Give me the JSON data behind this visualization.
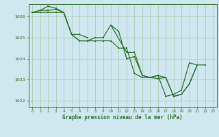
{
  "title": "Graphe pression niveau de la mer (hPa)",
  "bg_color": "#cfe8f0",
  "line_color": "#2d6e2d",
  "grid_color": "#a8c8a8",
  "text_color": "#2d6e2d",
  "ylim": [
    1021.7,
    1026.6
  ],
  "xlim": [
    -0.5,
    23.5
  ],
  "yticks": [
    1022,
    1023,
    1024,
    1025,
    1026
  ],
  "xticks": [
    0,
    1,
    2,
    3,
    4,
    5,
    6,
    7,
    8,
    9,
    10,
    11,
    12,
    13,
    14,
    15,
    16,
    17,
    18,
    19,
    20,
    21,
    22,
    23
  ],
  "s1_x": [
    0,
    1,
    2,
    3,
    4,
    5,
    6,
    7,
    8,
    9,
    10,
    11,
    12,
    13,
    14,
    15,
    16,
    17,
    18,
    19,
    20,
    21
  ],
  "s1_y": [
    1026.2,
    1026.2,
    1026.2,
    1026.2,
    1026.2,
    1025.15,
    1024.85,
    1024.85,
    1025.0,
    1025.0,
    1025.6,
    1025.3,
    1024.0,
    1024.1,
    1023.2,
    1023.1,
    1023.2,
    1022.2,
    1022.3,
    1022.5,
    1023.8,
    1023.7
  ],
  "s2_x": [
    0,
    1,
    2,
    3,
    4,
    5,
    6,
    7,
    8,
    9,
    10,
    11,
    12,
    13,
    14,
    15,
    16,
    17,
    18,
    19,
    20,
    21
  ],
  "s2_y": [
    1026.2,
    1026.3,
    1026.3,
    1026.35,
    1026.2,
    1025.15,
    1024.85,
    1024.85,
    1024.85,
    1024.85,
    1024.85,
    1024.5,
    1024.5,
    1023.3,
    1023.1,
    1023.1,
    1023.05,
    1023.1,
    1022.2,
    1022.3,
    1022.8,
    1023.7
  ],
  "s3_x": [
    0,
    1,
    2,
    3,
    4,
    5,
    6,
    7
  ],
  "s3_y": [
    1026.2,
    1026.3,
    1026.5,
    1026.4,
    1026.2,
    1025.15,
    1025.15,
    1025.0
  ],
  "s4_x": [
    10,
    12,
    13,
    14,
    15,
    16,
    17,
    18,
    19,
    20,
    21,
    22
  ],
  "s4_y": [
    1025.6,
    1024.3,
    1024.3,
    1023.2,
    1023.1,
    1023.2,
    1023.1,
    1022.2,
    1022.3,
    1022.8,
    1023.7,
    1023.7
  ]
}
